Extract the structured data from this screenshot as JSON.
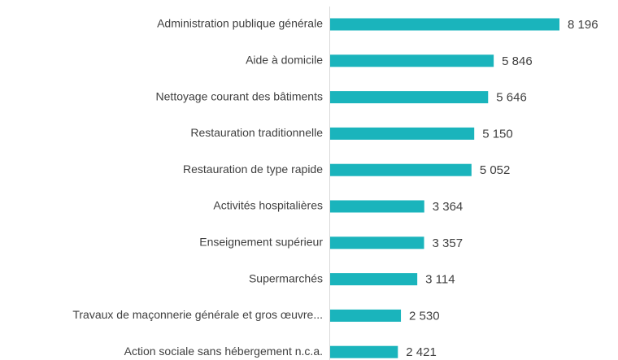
{
  "chart_data": {
    "type": "bar",
    "orientation": "horizontal",
    "color": "#1ab4bc",
    "categories": [
      "Administration publique générale",
      "Aide à domicile",
      "Nettoyage courant des bâtiments",
      "Restauration traditionnelle",
      "Restauration de type rapide",
      "Activités hospitalières",
      "Enseignement supérieur",
      "Supermarchés",
      "Travaux de maçonnerie générale et gros œuvre...",
      "Action sociale sans hébergement n.c.a."
    ],
    "values": [
      8196,
      5846,
      5646,
      5150,
      5052,
      3364,
      3357,
      3114,
      2530,
      2421
    ],
    "value_labels": [
      "8 196",
      "5 846",
      "5 646",
      "5 150",
      "5 052",
      "3 364",
      "3 357",
      "3 114",
      "2 530",
      "2 421"
    ]
  }
}
